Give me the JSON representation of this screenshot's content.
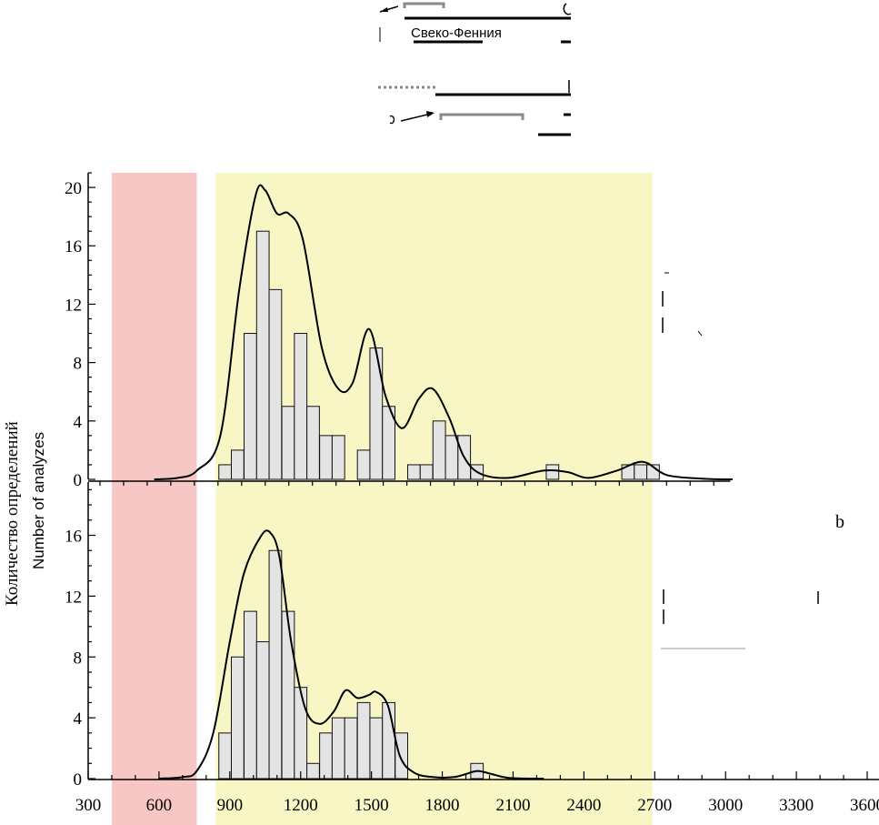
{
  "chart_data": {
    "type": "bar",
    "x_ticks": [
      300,
      600,
      900,
      1200,
      1500,
      1800,
      2100,
      2400,
      2700,
      3000,
      3300,
      3600
    ],
    "xlim": [
      300,
      3650
    ],
    "ylabel_ru": "Количество определений",
    "ylabel_en": "Number of analyzes",
    "bands": [
      {
        "from": 400,
        "to": 760,
        "color": "#f6c7c5"
      },
      {
        "from": 840,
        "to": 2690,
        "color": "#f9f6c6"
      }
    ],
    "top_note": "Свеко-Фенния",
    "panels": [
      {
        "letter": "",
        "ylim": [
          0,
          21
        ],
        "y_ticks": [
          0,
          4,
          8,
          12,
          16,
          20
        ],
        "bar_width": 53,
        "bars": {
          "x": [
            880,
            933,
            987,
            1040,
            1093,
            1147,
            1200,
            1253,
            1307,
            1360,
            1467,
            1520,
            1573,
            1680,
            1733,
            1787,
            1840,
            1893,
            1947,
            2267,
            2587,
            2640,
            2693
          ],
          "values": [
            1,
            2,
            10,
            17,
            13,
            5,
            10,
            5,
            3,
            3,
            2,
            9,
            5,
            1,
            1,
            4,
            3,
            3,
            1,
            1,
            1,
            1,
            1
          ]
        },
        "density": {
          "x": [
            580,
            680,
            760,
            860,
            940,
            1010,
            1050,
            1100,
            1150,
            1210,
            1290,
            1360,
            1420,
            1490,
            1560,
            1630,
            1700,
            1760,
            1830,
            1890,
            1960,
            2080,
            2230,
            2330,
            2420,
            2540,
            2650,
            2750,
            2900,
            3030
          ],
          "y": [
            0,
            0.1,
            0.6,
            3,
            13,
            19.5,
            19.8,
            18.2,
            18.2,
            16.4,
            9,
            6.2,
            6.6,
            10.3,
            5.7,
            3.5,
            5.5,
            6.2,
            4.2,
            1.6,
            0.4,
            0.1,
            0.6,
            0.5,
            0.1,
            0.6,
            1.2,
            0.3,
            0.05,
            0
          ]
        }
      },
      {
        "letter": "b",
        "ylim": [
          0,
          19.5
        ],
        "y_ticks": [
          0,
          4,
          8,
          12,
          16
        ],
        "bar_width": 53,
        "bars": {
          "x": [
            880,
            933,
            987,
            1040,
            1093,
            1147,
            1200,
            1253,
            1307,
            1360,
            1413,
            1467,
            1520,
            1573,
            1627,
            1947
          ],
          "values": [
            3,
            8,
            11,
            9,
            15,
            11,
            6,
            1,
            3,
            4,
            4,
            5,
            4,
            5,
            3,
            1
          ]
        },
        "density": {
          "x": [
            600,
            700,
            760,
            830,
            900,
            960,
            1030,
            1070,
            1110,
            1160,
            1220,
            1280,
            1340,
            1390,
            1440,
            1490,
            1520,
            1570,
            1620,
            1680,
            1760,
            1850,
            1900,
            1950,
            2010,
            2080,
            2230
          ],
          "y": [
            0,
            0.1,
            0.5,
            3,
            9,
            13.5,
            15.9,
            16.2,
            14.6,
            9,
            4.6,
            3.6,
            4.4,
            5.8,
            5.3,
            5.5,
            5.7,
            4.8,
            1.5,
            0.4,
            0.1,
            0.1,
            0.3,
            0.5,
            0.3,
            0.05,
            0
          ]
        }
      }
    ]
  }
}
